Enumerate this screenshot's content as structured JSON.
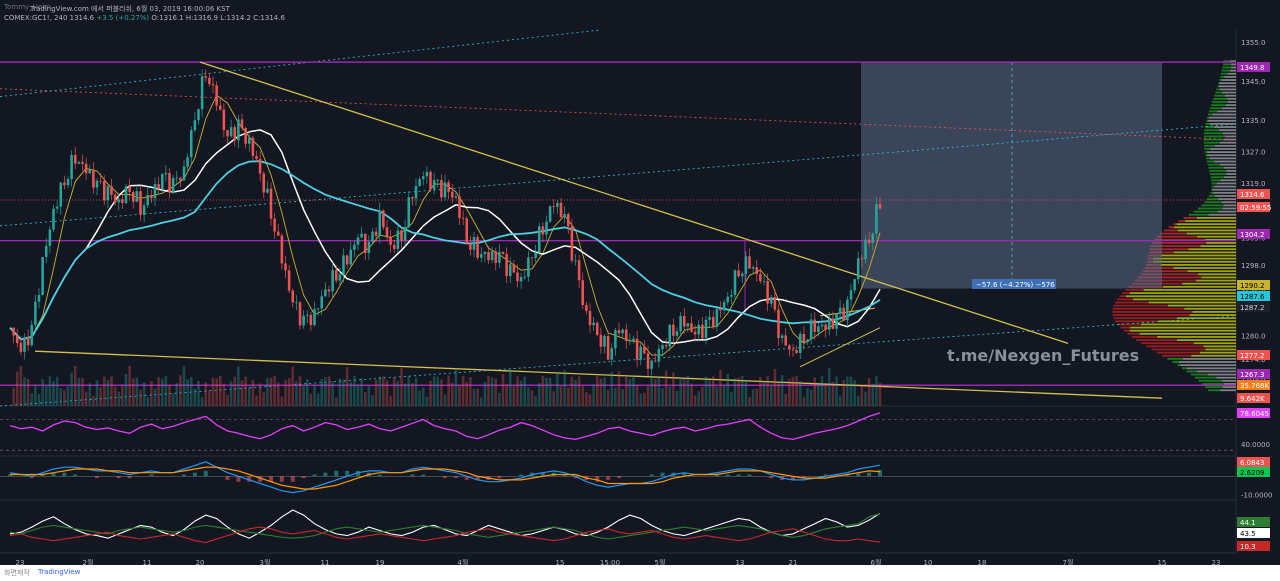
{
  "header": {
    "author": "Tommy_Heim",
    "title_line": "TradingView.com 에서 퍼블리쉬, 6월 03, 2019 16:00:06 KST",
    "symbol": "COMEX:GC1!, 240",
    "last": "1314.6",
    "change": "+3.5 (+0.27%)",
    "ohlc": "O:1316.1 H:1316.9 L:1314.2 C:1314.6"
  },
  "footer": {
    "left": "화면제작",
    "brand": "TradingView"
  },
  "watermark": "t.me/Nexgen_Futures",
  "colors": {
    "background": "#131722",
    "up": "#26a69a",
    "down": "#ef5350",
    "purple_level": "#9c27b0",
    "ma_white": "#ffffff",
    "ma_cyan": "#4dd0e1",
    "ma_yellow": "#c9b32a",
    "trendline": "#d4c04a",
    "rsi": "#e040fb",
    "vp_up": "#1b8e1b",
    "vp_down": "#b71c1c",
    "vp_va": "#c8c800",
    "vp_gray": "#9e9e9e"
  },
  "chart_data": [
    {
      "type": "candlestick",
      "title": "COMEX:GC1!, 240",
      "ylim": [
        1262,
        1358
      ],
      "price_axis_ticks": [
        1355.0,
        1345.0,
        1335.0,
        1327.0,
        1319.0,
        1305.0,
        1298.0,
        1292.0,
        1280.0,
        1274.0,
        1269.0
      ],
      "x_tick_labels": [
        "23",
        "2월",
        "11",
        "20",
        "3월",
        "11",
        "19",
        "4월",
        "15",
        "15:00",
        "5월",
        "13",
        "21",
        "6월",
        "10",
        "18",
        "7월",
        "15",
        "23"
      ],
      "price_tags": [
        {
          "label": "1349.8",
          "kind": "level"
        },
        {
          "label": "1314.6",
          "kind": "last"
        },
        {
          "label": "02:59:55",
          "kind": "countdown"
        },
        {
          "label": "1304.2",
          "kind": "level"
        },
        {
          "label": "1290.2",
          "kind": "ma"
        },
        {
          "label": "1287.6",
          "kind": "ma"
        },
        {
          "label": "1287.2",
          "kind": "ma"
        },
        {
          "label": "1277.2",
          "kind": "ma"
        },
        {
          "label": "1267.3",
          "kind": "level"
        }
      ],
      "horizontal_levels": [
        1349.8,
        1304.2,
        1267.3
      ],
      "measure_label": "−57.6 (−4.27%) −576",
      "close_series": [
        1282,
        1276,
        1281,
        1298,
        1312,
        1320,
        1326,
        1322,
        1318,
        1316,
        1314,
        1318,
        1313,
        1316,
        1320,
        1318,
        1322,
        1336,
        1348,
        1340,
        1330,
        1333,
        1329,
        1322,
        1312,
        1300,
        1288,
        1283,
        1285,
        1292,
        1296,
        1300,
        1305,
        1302,
        1310,
        1303,
        1306,
        1317,
        1321,
        1318,
        1317,
        1315,
        1305,
        1302,
        1300,
        1300,
        1296,
        1294,
        1301,
        1308,
        1314,
        1310,
        1297,
        1285,
        1281,
        1276,
        1282,
        1278,
        1275,
        1272,
        1278,
        1282,
        1284,
        1280,
        1282,
        1285,
        1290,
        1297,
        1299,
        1294,
        1288,
        1278,
        1276,
        1280,
        1283,
        1282,
        1284,
        1287,
        1299,
        1305,
        1314.6
      ]
    },
    {
      "type": "line",
      "title": "RSI",
      "tick_labels": [
        "78.6045",
        "40.0000"
      ],
      "values": [
        62,
        58,
        60,
        55,
        63,
        68,
        66,
        60,
        57,
        59,
        55,
        52,
        60,
        64,
        58,
        61,
        66,
        70,
        74,
        63,
        55,
        52,
        48,
        45,
        50,
        58,
        62,
        55,
        60,
        66,
        63,
        57,
        60,
        64,
        58,
        55,
        60,
        65,
        70,
        62,
        58,
        55,
        48,
        45,
        50,
        56,
        60,
        66,
        62,
        56,
        50,
        46,
        44,
        48,
        52,
        58,
        60,
        55,
        52,
        49,
        54,
        58,
        60,
        55,
        58,
        62,
        64,
        67,
        70,
        60,
        52,
        46,
        44,
        48,
        52,
        55,
        58,
        62,
        68,
        74,
        78.6
      ]
    },
    {
      "type": "line",
      "title": "MACD",
      "tick_labels": [
        "6.0843",
        "2.6209",
        "-10.0000"
      ],
      "series": [
        {
          "values": [
            2,
            1,
            0,
            2,
            4,
            5,
            5,
            4,
            3,
            3,
            2,
            1,
            2,
            3,
            2,
            2,
            4,
            6,
            8,
            5,
            2,
            0,
            -2,
            -4,
            -6,
            -8,
            -9,
            -8,
            -6,
            -4,
            -2,
            0,
            2,
            3,
            3,
            2,
            2,
            4,
            5,
            4,
            3,
            2,
            0,
            -2,
            -3,
            -3,
            -2,
            -1,
            1,
            2,
            3,
            2,
            0,
            -3,
            -5,
            -6,
            -5,
            -4,
            -4,
            -3,
            -1,
            1,
            2,
            1,
            1,
            2,
            3,
            4,
            4,
            3,
            1,
            -1,
            -2,
            -2,
            -1,
            0,
            1,
            2,
            4,
            5,
            6.1
          ]
        },
        {
          "values": [
            1,
            1,
            1,
            1,
            2,
            3,
            4,
            4,
            4,
            3,
            3,
            2,
            2,
            2,
            2,
            2,
            3,
            4,
            5,
            5,
            4,
            3,
            1,
            -1,
            -3,
            -5,
            -6,
            -7,
            -7,
            -6,
            -5,
            -3,
            -1,
            1,
            2,
            2,
            2,
            3,
            4,
            4,
            4,
            3,
            2,
            0,
            -1,
            -2,
            -2,
            -2,
            -1,
            0,
            1,
            1,
            1,
            -1,
            -2,
            -4,
            -4,
            -4,
            -4,
            -4,
            -3,
            -1,
            0,
            1,
            1,
            1,
            2,
            3,
            3,
            3,
            2,
            1,
            0,
            -1,
            -1,
            -1,
            0,
            1,
            2,
            3,
            2.6
          ]
        }
      ]
    },
    {
      "type": "line",
      "title": "DMI",
      "tick_labels": [
        "44.1",
        "43.5",
        "10.3"
      ],
      "series": [
        {
          "values": [
            20,
            22,
            28,
            35,
            40,
            32,
            25,
            20,
            18,
            15,
            20,
            25,
            30,
            28,
            22,
            18,
            25,
            35,
            42,
            38,
            28,
            20,
            15,
            22,
            30,
            40,
            48,
            42,
            32,
            25,
            20,
            18,
            22,
            28,
            24,
            20,
            18,
            22,
            28,
            30,
            25,
            20,
            18,
            24,
            30,
            26,
            22,
            18,
            20,
            24,
            28,
            25,
            20,
            18,
            22,
            28,
            36,
            42,
            38,
            30,
            24,
            20,
            18,
            22,
            26,
            30,
            34,
            38,
            36,
            28,
            22,
            18,
            20,
            26,
            32,
            38,
            34,
            28,
            30,
            36,
            44.1
          ]
        },
        {
          "values": [
            22,
            20,
            24,
            28,
            30,
            28,
            26,
            24,
            22,
            20,
            24,
            26,
            28,
            26,
            24,
            22,
            24,
            28,
            30,
            28,
            26,
            24,
            22,
            20,
            18,
            16,
            15,
            16,
            18,
            22,
            26,
            28,
            26,
            24,
            22,
            24,
            26,
            28,
            30,
            28,
            26,
            24,
            20,
            18,
            16,
            18,
            20,
            22,
            24,
            26,
            28,
            26,
            24,
            20,
            16,
            14,
            16,
            18,
            20,
            22,
            24,
            26,
            28,
            26,
            24,
            26,
            28,
            30,
            28,
            26,
            22,
            18,
            16,
            18,
            22,
            26,
            28,
            30,
            32,
            40,
            43.5
          ]
        },
        {
          "values": [
            18,
            20,
            16,
            14,
            12,
            14,
            16,
            18,
            20,
            22,
            18,
            16,
            14,
            16,
            18,
            20,
            16,
            12,
            10,
            14,
            18,
            22,
            26,
            28,
            26,
            22,
            20,
            22,
            24,
            20,
            16,
            14,
            16,
            18,
            20,
            18,
            16,
            14,
            12,
            14,
            16,
            18,
            22,
            24,
            26,
            22,
            20,
            18,
            16,
            14,
            12,
            14,
            18,
            22,
            24,
            26,
            22,
            20,
            22,
            24,
            20,
            16,
            14,
            16,
            18,
            16,
            14,
            12,
            14,
            18,
            22,
            24,
            26,
            22,
            18,
            14,
            12,
            12,
            14,
            12,
            10.3
          ]
        }
      ]
    }
  ]
}
